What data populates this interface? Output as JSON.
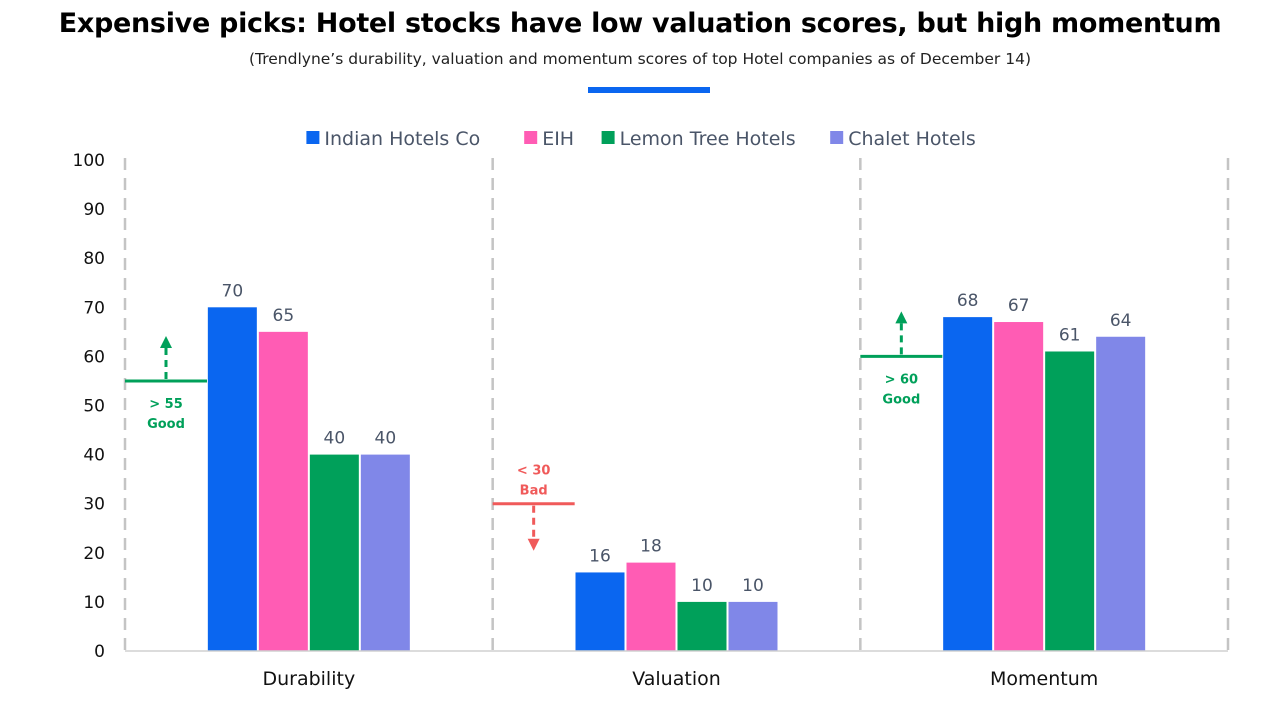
{
  "title": "Expensive picks: Hotel stocks have low valuation scores, but high momentum",
  "subtitle": "(Trendlyne’s durability, valuation and momentum scores of top Hotel companies as of December 14)",
  "colors": {
    "accent": "#0a66f0",
    "good": "#00a05a",
    "bad": "#f05a5a"
  },
  "chart_data": {
    "type": "bar",
    "categories": [
      "Durability",
      "Valuation",
      "Momentum"
    ],
    "series": [
      {
        "name": "Indian Hotels Co",
        "color": "#0a66f0",
        "values": [
          70,
          16,
          68
        ]
      },
      {
        "name": "EIH",
        "color": "#ff5cb4",
        "values": [
          65,
          18,
          67
        ]
      },
      {
        "name": "Lemon Tree Hotels",
        "color": "#00a05a",
        "values": [
          40,
          10,
          61
        ]
      },
      {
        "name": "Chalet Hotels",
        "color": "#8087e8",
        "values": [
          40,
          10,
          64
        ]
      }
    ],
    "ylim": [
      0,
      100
    ],
    "yticks": [
      0,
      10,
      20,
      30,
      40,
      50,
      60,
      70,
      80,
      90,
      100
    ],
    "legend_position": "top",
    "grid": false,
    "thresholds": [
      {
        "category": "Durability",
        "value": 55,
        "direction": "up",
        "kind": "good",
        "line1": "> 55",
        "line2": "Good"
      },
      {
        "category": "Valuation",
        "value": 30,
        "direction": "down",
        "kind": "bad",
        "line1": "< 30",
        "line2": "Bad"
      },
      {
        "category": "Momentum",
        "value": 60,
        "direction": "up",
        "kind": "good",
        "line1": "> 60",
        "line2": "Good"
      }
    ]
  }
}
